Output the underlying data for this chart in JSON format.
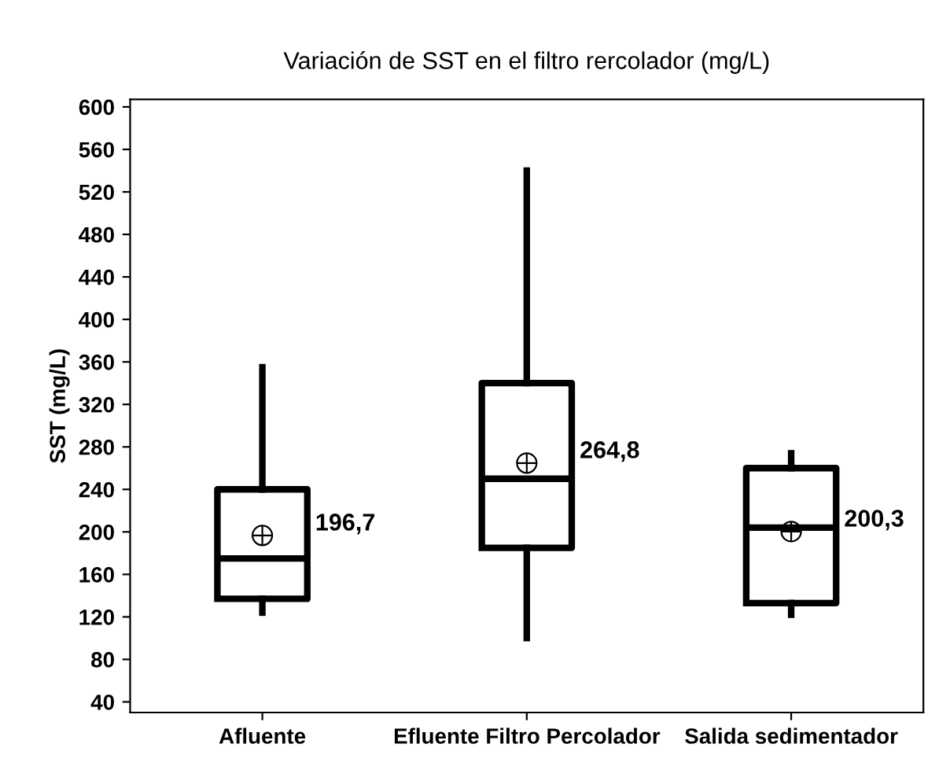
{
  "chart_data": {
    "type": "box",
    "title": "Variación de SST en el filtro rercolador (mg/L)",
    "ylabel": "SST (mg/L)",
    "categories": [
      "Afluente",
      "Efluente Filtro Percolador",
      "Salida sedimentador"
    ],
    "boxes": [
      {
        "low": 124,
        "q1": 137,
        "median": 175,
        "q3": 240,
        "high": 355,
        "mean": 196.7
      },
      {
        "low": 100,
        "q1": 185,
        "median": 250,
        "q3": 340,
        "high": 540,
        "mean": 264.8
      },
      {
        "low": 122,
        "q1": 133,
        "median": 204,
        "q3": 260,
        "high": 274,
        "mean": 200.3
      }
    ],
    "value_labels": [
      "196,7",
      "264,8",
      "200,3"
    ],
    "ylim": [
      30,
      607
    ],
    "yticks": [
      40,
      80,
      120,
      160,
      200,
      240,
      280,
      320,
      360,
      400,
      440,
      480,
      520,
      560,
      600
    ],
    "grid": false
  }
}
